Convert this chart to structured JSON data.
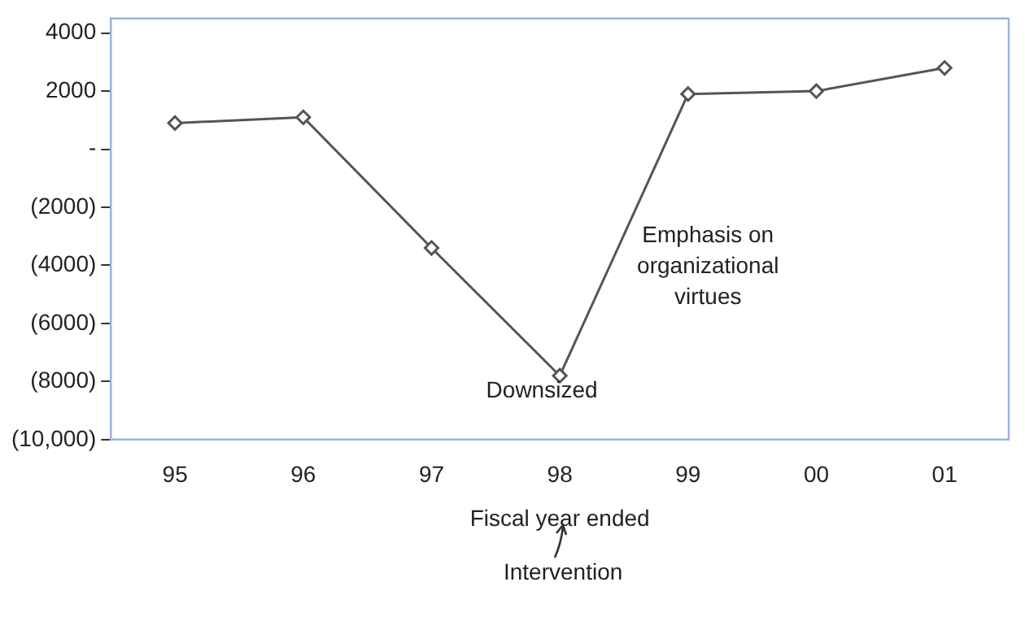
{
  "chart_data": {
    "type": "line",
    "xlabel": "Fiscal year ended",
    "categories": [
      "95",
      "96",
      "97",
      "98",
      "99",
      "00",
      "01"
    ],
    "series": [
      {
        "color": "#555555",
        "values": [
          900,
          1100,
          -3400,
          -7800,
          1900,
          2000,
          2800
        ]
      }
    ],
    "ylim": [
      -10000,
      4500
    ],
    "yticks": [
      4000,
      2000,
      {
        "value": 0,
        "label": "-"
      },
      {
        "value": -2000,
        "label": "(2000)"
      },
      {
        "value": -4000,
        "label": "(4000)"
      },
      {
        "value": -6000,
        "label": "(6000)"
      },
      {
        "value": -8000,
        "label": "(8000)"
      },
      {
        "value": -10000,
        "label": "(10,000)"
      }
    ],
    "marker": "diamond",
    "line_style": "solid",
    "legend": false,
    "annotations": [
      "Downsized",
      "Emphasis on organizational virtues",
      "Intervention"
    ]
  }
}
